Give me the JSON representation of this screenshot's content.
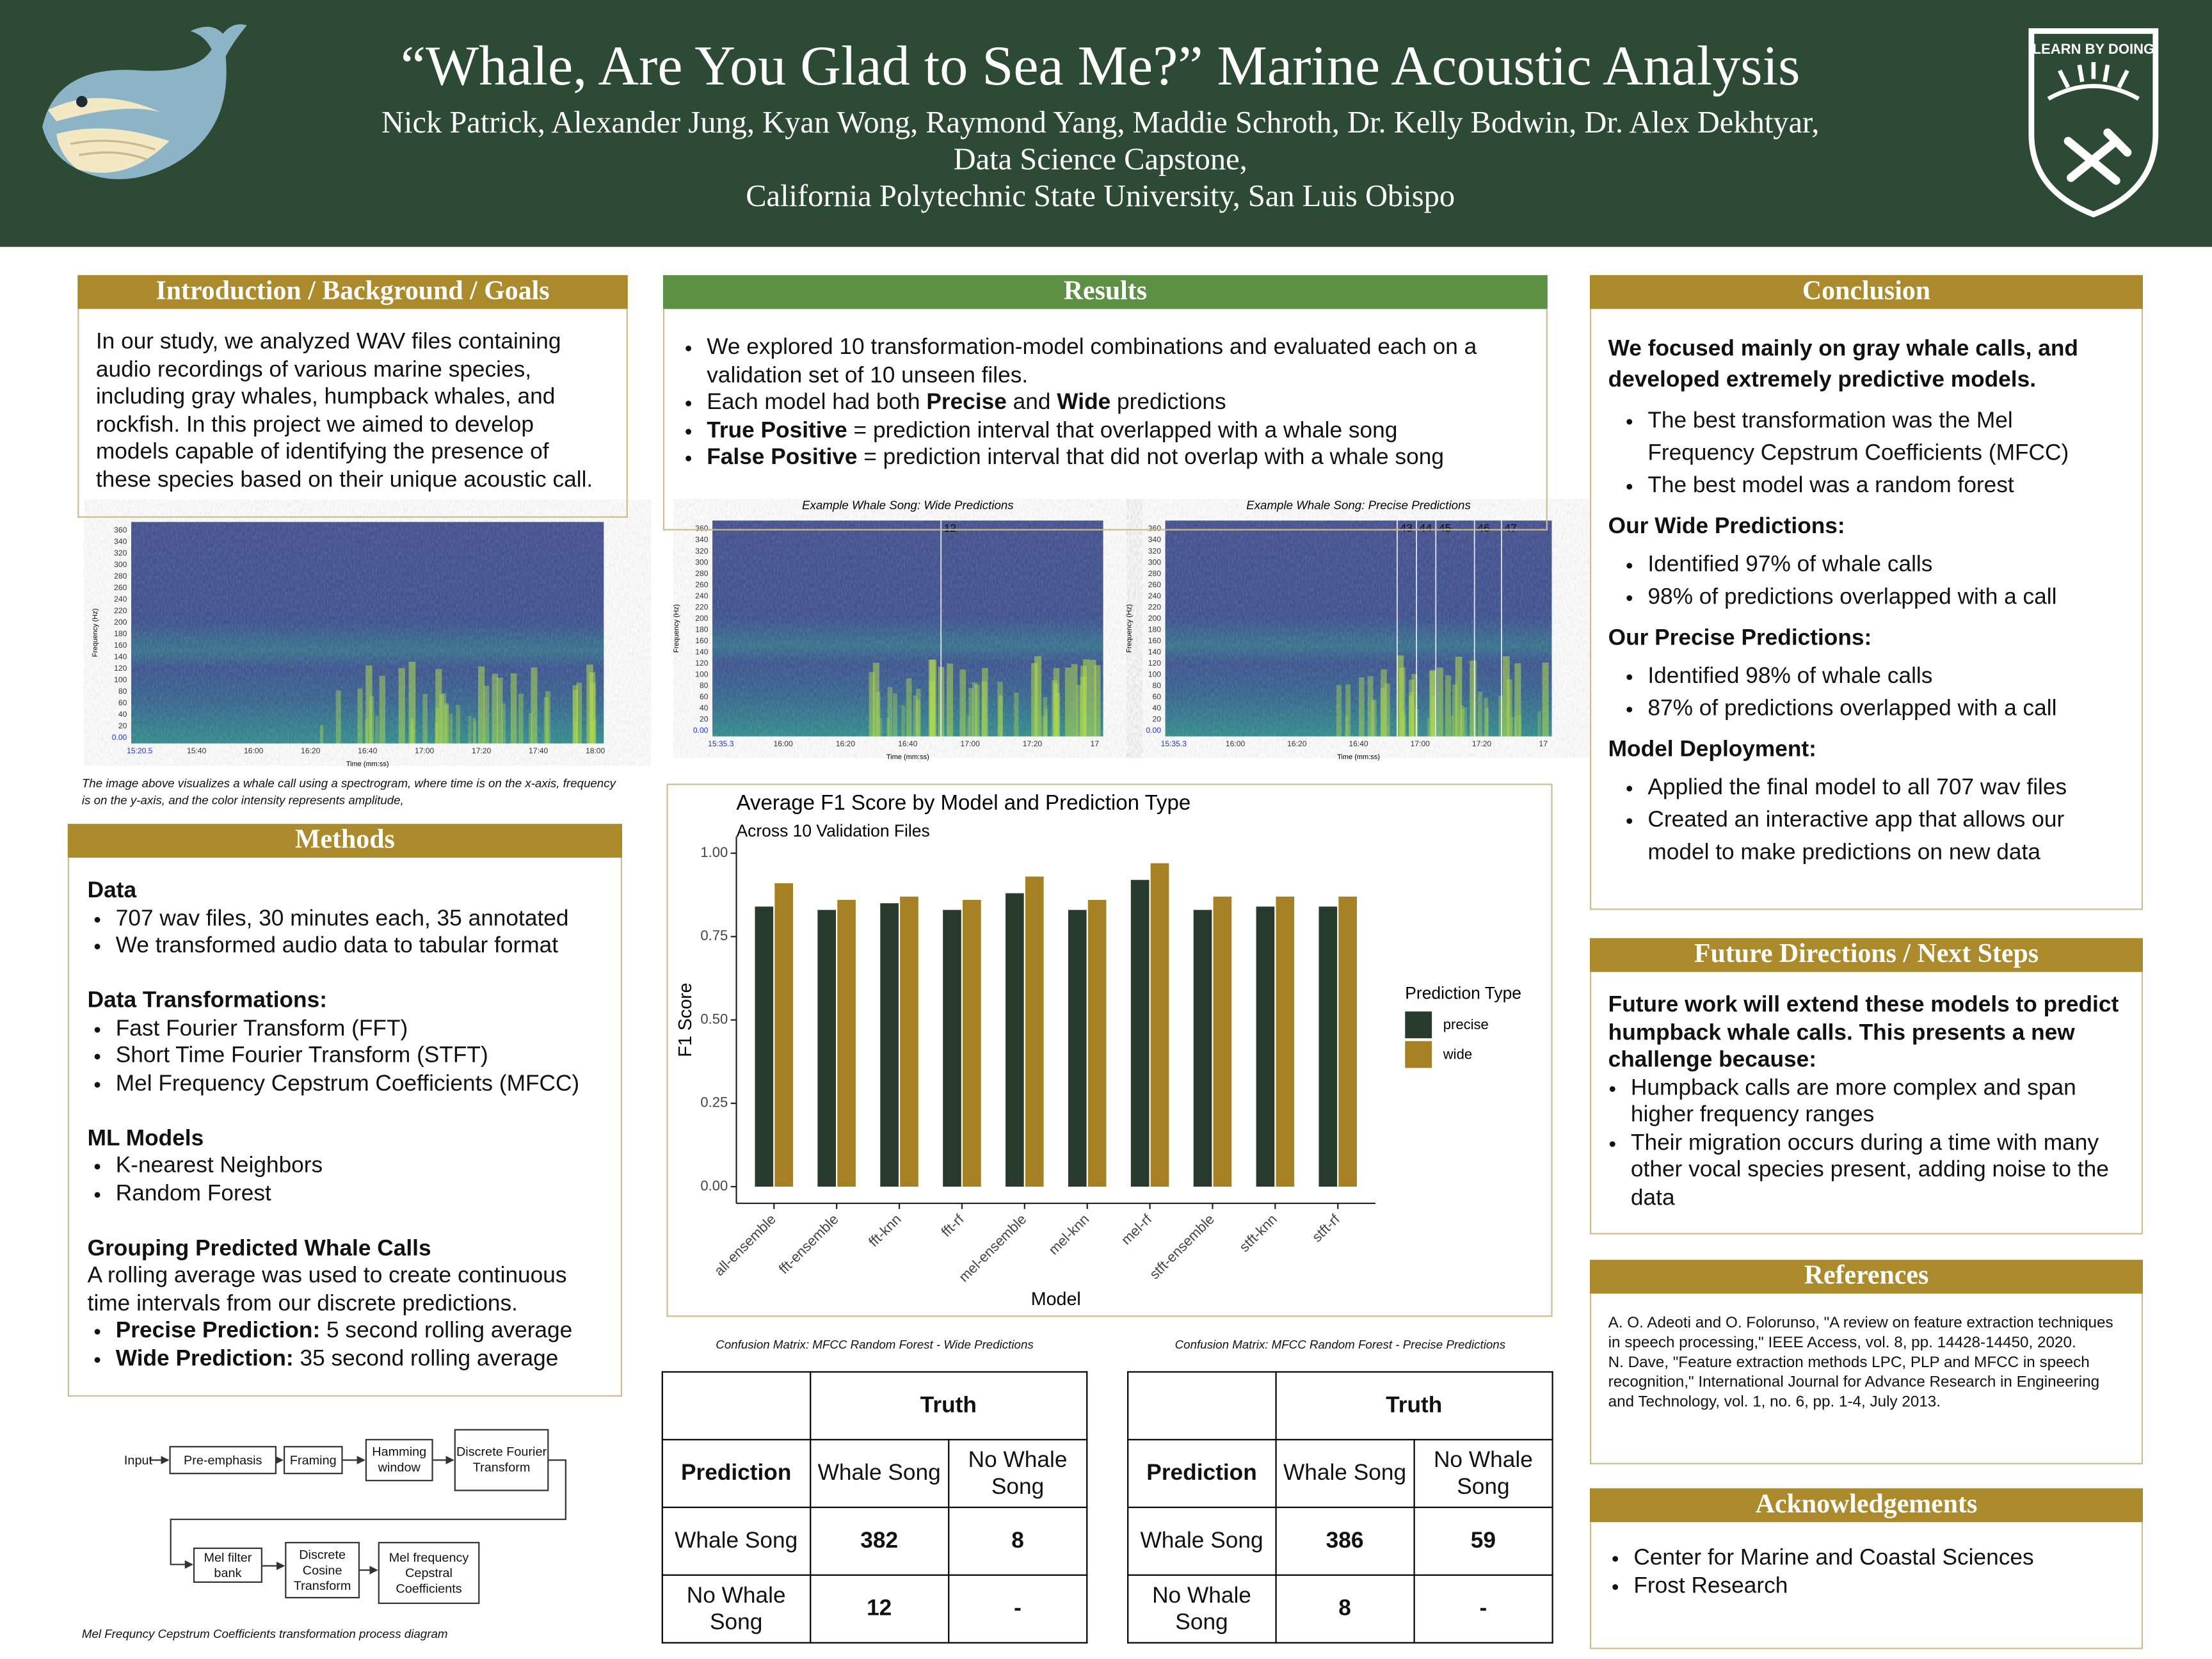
{
  "header": {
    "title": "“Whale, Are You Glad to Sea Me?” Marine Acoustic Analysis",
    "authors": "Nick Patrick, Alexander Jung, Kyan Wong, Raymond Yang, Maddie Schroth, Dr. Kelly Bodwin, Dr. Alex Dekhtyar,",
    "program": "Data Science Capstone,",
    "university": "California Polytechnic State University, San Luis Obispo",
    "logo": "LEARN BY DOING"
  },
  "introduction": {
    "heading": "Introduction / Background / Goals",
    "text": "In our study, we analyzed WAV files containing audio recordings of various marine species, including gray whales, humpback whales, and rockfish. In this project we aimed to develop models capable of identifying the presence of these species based on their unique acoustic call."
  },
  "spectrograms": {
    "caption": "The image above visualizes a whale call using a spectrogram, where time is on the x-axis, frequency is on the y-axis, and the color intensity represents amplitude,",
    "items": [
      {
        "y_label": "Frequency (Hz)",
        "x_label": "Time (mm:ss)",
        "yticks": [
          "0.00",
          "20",
          "40",
          "60",
          "80",
          "100",
          "120",
          "140",
          "160",
          "180",
          "200",
          "220",
          "240",
          "260",
          "280",
          "300",
          "320",
          "340",
          "360"
        ],
        "xticks": [
          "15:20.5",
          "15:40",
          "16:00",
          "16:20",
          "16:40",
          "17:00",
          "17:20",
          "17:40",
          "18:00"
        ]
      },
      {
        "title": "Example Whale Song: Wide Predictions",
        "y_label": "Frequency (Hz)",
        "x_label": "Time (mm:ss)",
        "yticks": [
          "0.00",
          "20",
          "40",
          "60",
          "80",
          "100",
          "120",
          "140",
          "160",
          "180",
          "200",
          "220",
          "240",
          "260",
          "280",
          "300",
          "320",
          "340",
          "360"
        ],
        "xticks": [
          "15:35.3",
          "16:00",
          "16:20",
          "16:40",
          "17:00",
          "17:20",
          "17"
        ],
        "markers": [
          "12"
        ]
      },
      {
        "title": "Example Whale Song: Precise Predictions",
        "y_label": "Frequency (Hz)",
        "x_label": "Time (mm:ss)",
        "yticks": [
          "0.00",
          "20",
          "40",
          "60",
          "80",
          "100",
          "120",
          "140",
          "160",
          "180",
          "200",
          "220",
          "240",
          "260",
          "280",
          "300",
          "320",
          "340",
          "360"
        ],
        "xticks": [
          "15:35.3",
          "16:00",
          "16:20",
          "16:40",
          "17:00",
          "17:20",
          "17"
        ],
        "markers": [
          "43",
          "44",
          "45",
          "46",
          "47"
        ]
      }
    ]
  },
  "methods": {
    "heading": "Methods",
    "blocks": [
      {
        "heading": "Data",
        "bullets": [
          "707 wav files, 30 minutes each, 35 annotated",
          "We transformed audio data to tabular format"
        ]
      },
      {
        "heading": "Data Transformations:",
        "bullets": [
          "Fast Fourier Transform (FFT)",
          "Short Time Fourier Transform (STFT)",
          "Mel Frequency Cepstrum Coefficients (MFCC)"
        ]
      },
      {
        "heading": "ML Models",
        "bullets": [
          "K-nearest Neighbors",
          "Random Forest"
        ]
      },
      {
        "heading": "Grouping Predicted Whale Calls",
        "text": "A rolling average was used to create continuous time intervals from our discrete predictions.",
        "bullets": [
          [
            {
              "text": "Precise Prediction:",
              "bold": true
            },
            {
              "text": " 5 second rolling average"
            }
          ],
          [
            {
              "text": "Wide Prediction:",
              "bold": true
            },
            {
              "text": " 35 second rolling average"
            }
          ]
        ]
      }
    ]
  },
  "diagram": {
    "nodes": [
      "Input",
      "Pre-emphasis",
      "Framing",
      "Hamming window",
      "Discrete Fourier Transform",
      "Mel filter bank",
      "Discrete Cosine Transform",
      "Mel frequency Cepstral Coefficients"
    ],
    "caption": "Mel Frequncy Cepstrum Coefficients transformation process diagram"
  },
  "results": {
    "heading": "Results",
    "bullets": [
      "We explored 10 transformation-model combinations and evaluated each on a validation set of 10 unseen files.",
      [
        {
          "text": "Each model had both "
        },
        {
          "text": "Precise",
          "bold": true
        },
        {
          "text": " and "
        },
        {
          "text": "Wide",
          "bold": true
        },
        {
          "text": " predictions"
        }
      ],
      [
        {
          "text": "True Positive",
          "bold": true
        },
        {
          "text": " = prediction interval that overlapped with a whale song"
        }
      ],
      [
        {
          "text": "False Positive",
          "bold": true
        },
        {
          "text": " = prediction interval that did not overlap with a whale song"
        }
      ]
    ]
  },
  "chart_data": {
    "type": "bar",
    "title": "Average F1 Score by Model and Prediction Type",
    "subtitle": "Across 10 Validation Files",
    "x_label": "Model",
    "y_label": "F1 Score",
    "legend_title": "Prediction Type",
    "categories": [
      "all-ensemble",
      "fft-ensemble",
      "fft-knn",
      "fft-rf",
      "mel-ensemble",
      "mel-knn",
      "mel-rf",
      "stft-ensemble",
      "stft-knn",
      "stft-rf"
    ],
    "series": [
      {
        "name": "precise",
        "color": "#273a2b",
        "values": [
          0.84,
          0.83,
          0.85,
          0.83,
          0.88,
          0.83,
          0.92,
          0.83,
          0.84,
          0.84
        ]
      },
      {
        "name": "wide",
        "color": "#a58124",
        "values": [
          0.91,
          0.86,
          0.87,
          0.86,
          0.93,
          0.86,
          0.97,
          0.87,
          0.87,
          0.87
        ]
      }
    ],
    "ylim": [
      -0.05,
      1.05
    ],
    "yticks": [
      {
        "value": 0,
        "label": "0.00"
      },
      {
        "value": 0.25,
        "label": "0.25"
      },
      {
        "value": 0.5,
        "label": "0.50"
      },
      {
        "value": 0.75,
        "label": "0.75"
      },
      {
        "value": 1,
        "label": "1.00"
      }
    ]
  },
  "confusion_matrices": [
    {
      "caption": "Confusion Matrix: MFCC Random Forest - Wide Predictions",
      "truth": "Truth",
      "prediction": "Prediction",
      "columns": [
        "Whale Song",
        "No Whale Song"
      ],
      "rows": [
        {
          "label": "Whale Song",
          "values": [
            382,
            8
          ]
        },
        {
          "label": "No Whale Song",
          "values": [
            12,
            "-"
          ]
        }
      ]
    },
    {
      "caption": "Confusion Matrix: MFCC Random Forest - Precise Predictions",
      "truth": "Truth",
      "prediction": "Prediction",
      "columns": [
        "Whale Song",
        "No Whale Song"
      ],
      "rows": [
        {
          "label": "Whale Song",
          "values": [
            386,
            59
          ]
        },
        {
          "label": "No Whale Song",
          "values": [
            8,
            "-"
          ]
        }
      ]
    }
  ],
  "conclusion": {
    "heading": "Conclusion",
    "lead": "We focused mainly on gray whale calls, and developed extremely predictive models.",
    "blocks": [
      {
        "bullets": [
          "The best transformation was the Mel Frequency Cepstrum Coefficients (MFCC)",
          "The best model was a random forest"
        ]
      },
      {
        "heading": "Our Wide Predictions:",
        "bullets": [
          "Identified 97% of whale calls",
          "98% of predictions overlapped with a call"
        ]
      },
      {
        "heading": "Our Precise Predictions:",
        "bullets": [
          "Identified 98% of whale calls",
          "87% of predictions overlapped with a call"
        ]
      },
      {
        "heading": "Model Deployment:",
        "bullets": [
          "Applied the final model to all 707 wav files",
          "Created an interactive app that allows our model to make predictions on new data"
        ]
      }
    ]
  },
  "future": {
    "heading": "Future Directions / Next Steps",
    "lead": "Future work will extend these models to predict humpback whale calls. This presents a new challenge because:",
    "bullets": [
      "Humpback calls are more complex and span higher frequency ranges",
      "Their migration occurs during a time with many other vocal species present, adding noise to the data"
    ]
  },
  "references": {
    "heading": "References",
    "items": [
      "A. O. Adeoti and O. Folorunso, \"A review on feature extraction techniques in speech processing,\" IEEE Access, vol. 8, pp. 14428-14450, 2020.",
      "N. Dave, \"Feature extraction methods LPC, PLP and MFCC in speech recognition,\" International Journal for Advance Research in Engineering and Technology, vol. 1, no. 6, pp. 1-4, July 2013."
    ]
  },
  "acknowledgements": {
    "heading": "Acknowledgements",
    "bullets": [
      "Center for Marine and Coastal Sciences",
      "Frost Research"
    ]
  }
}
